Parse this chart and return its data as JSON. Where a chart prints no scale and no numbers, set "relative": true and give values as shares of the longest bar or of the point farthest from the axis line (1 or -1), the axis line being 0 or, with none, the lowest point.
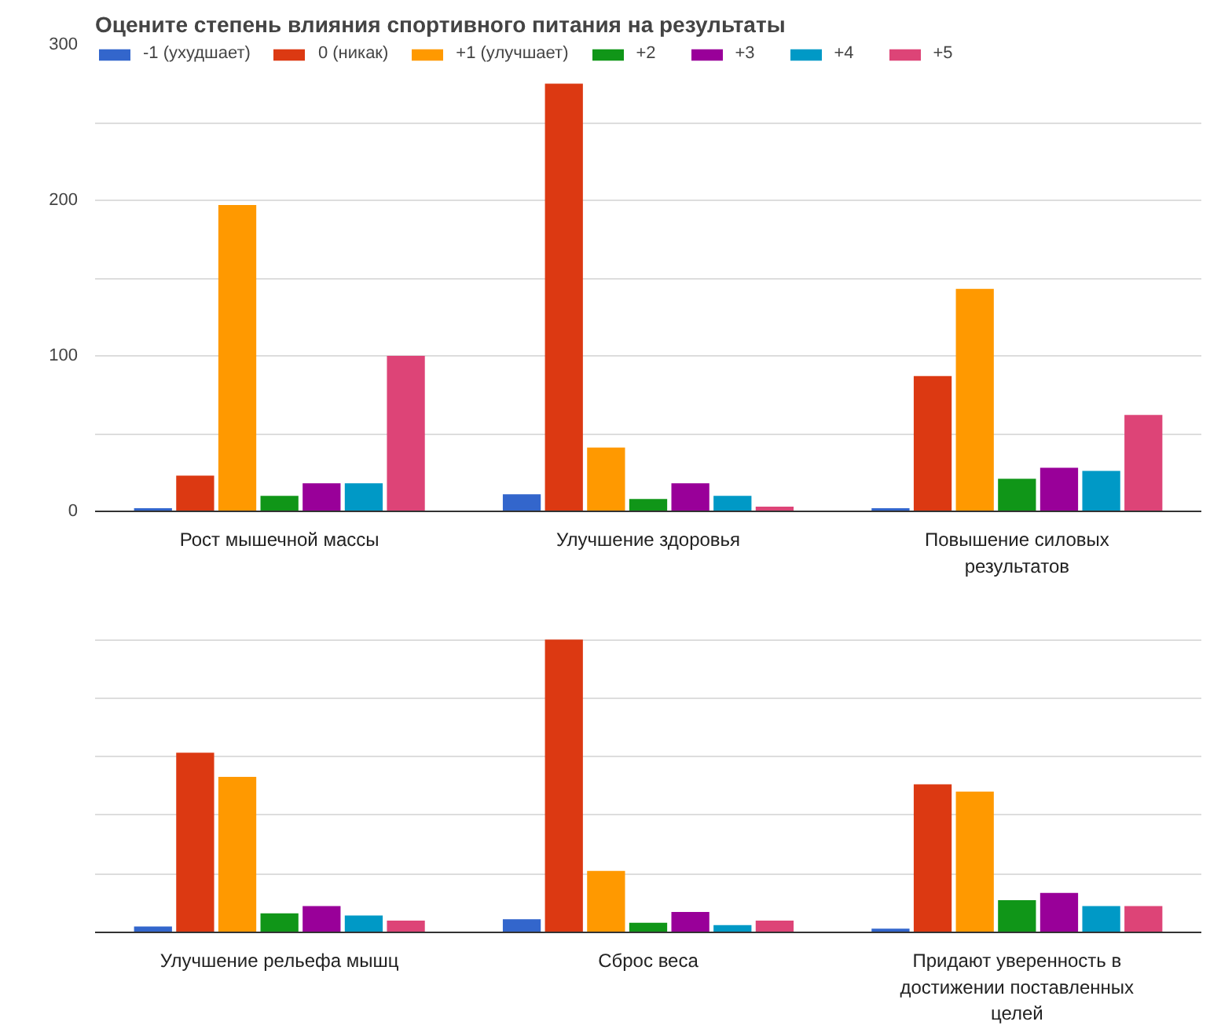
{
  "chart_data": [
    {
      "type": "bar",
      "title": "Оцените степень влияния спортивного питания на результаты",
      "categories": [
        "Рост мышечной массы",
        "Улучшение здоровья",
        "Повышение силовых результатов"
      ],
      "series": [
        {
          "name": "-1 (ухудшает)",
          "color": "#3366cc",
          "values": [
            2,
            11,
            2
          ]
        },
        {
          "name": "0 (никак)",
          "color": "#dc3912",
          "values": [
            23,
            275,
            87
          ]
        },
        {
          "name": "+1 (улучшает)",
          "color": "#ff9900",
          "values": [
            197,
            41,
            143
          ]
        },
        {
          "name": "+2",
          "color": "#109618",
          "values": [
            10,
            8,
            21
          ]
        },
        {
          "name": "+3",
          "color": "#990099",
          "values": [
            18,
            18,
            28
          ]
        },
        {
          "name": "+4",
          "color": "#0099c6",
          "values": [
            18,
            10,
            26
          ]
        },
        {
          "name": "+5",
          "color": "#dd4477",
          "values": [
            100,
            3,
            62
          ]
        }
      ],
      "ylim": [
        0,
        300
      ],
      "yticks": [
        0,
        {
          "value": 50,
          "label": null
        },
        100,
        {
          "value": 150,
          "label": null
        },
        200,
        {
          "value": 250,
          "label": null
        },
        300
      ],
      "grid": "y",
      "legend": "top left"
    },
    {
      "type": "bar",
      "relative": true,
      "categories": [
        "Улучшение рельефа мышц",
        "Сброс веса",
        "Придают уверенность в достижении поставленных целей"
      ],
      "series": [
        {
          "color": "#3366cc",
          "values": [
            0.02,
            0.045,
            0.013
          ]
        },
        {
          "color": "#dc3912",
          "values": [
            0.614,
            1,
            0.506
          ]
        },
        {
          "color": "#ff9900",
          "values": [
            0.531,
            0.21,
            0.481
          ]
        },
        {
          "color": "#109618",
          "values": [
            0.065,
            0.033,
            0.11
          ]
        },
        {
          "color": "#990099",
          "values": [
            0.09,
            0.07,
            0.135
          ]
        },
        {
          "color": "#0099c6",
          "values": [
            0.058,
            0.025,
            0.09
          ]
        },
        {
          "color": "#dd4477",
          "values": [
            0.04,
            0.04,
            0.09
          ]
        }
      ],
      "grid": "y"
    }
  ]
}
